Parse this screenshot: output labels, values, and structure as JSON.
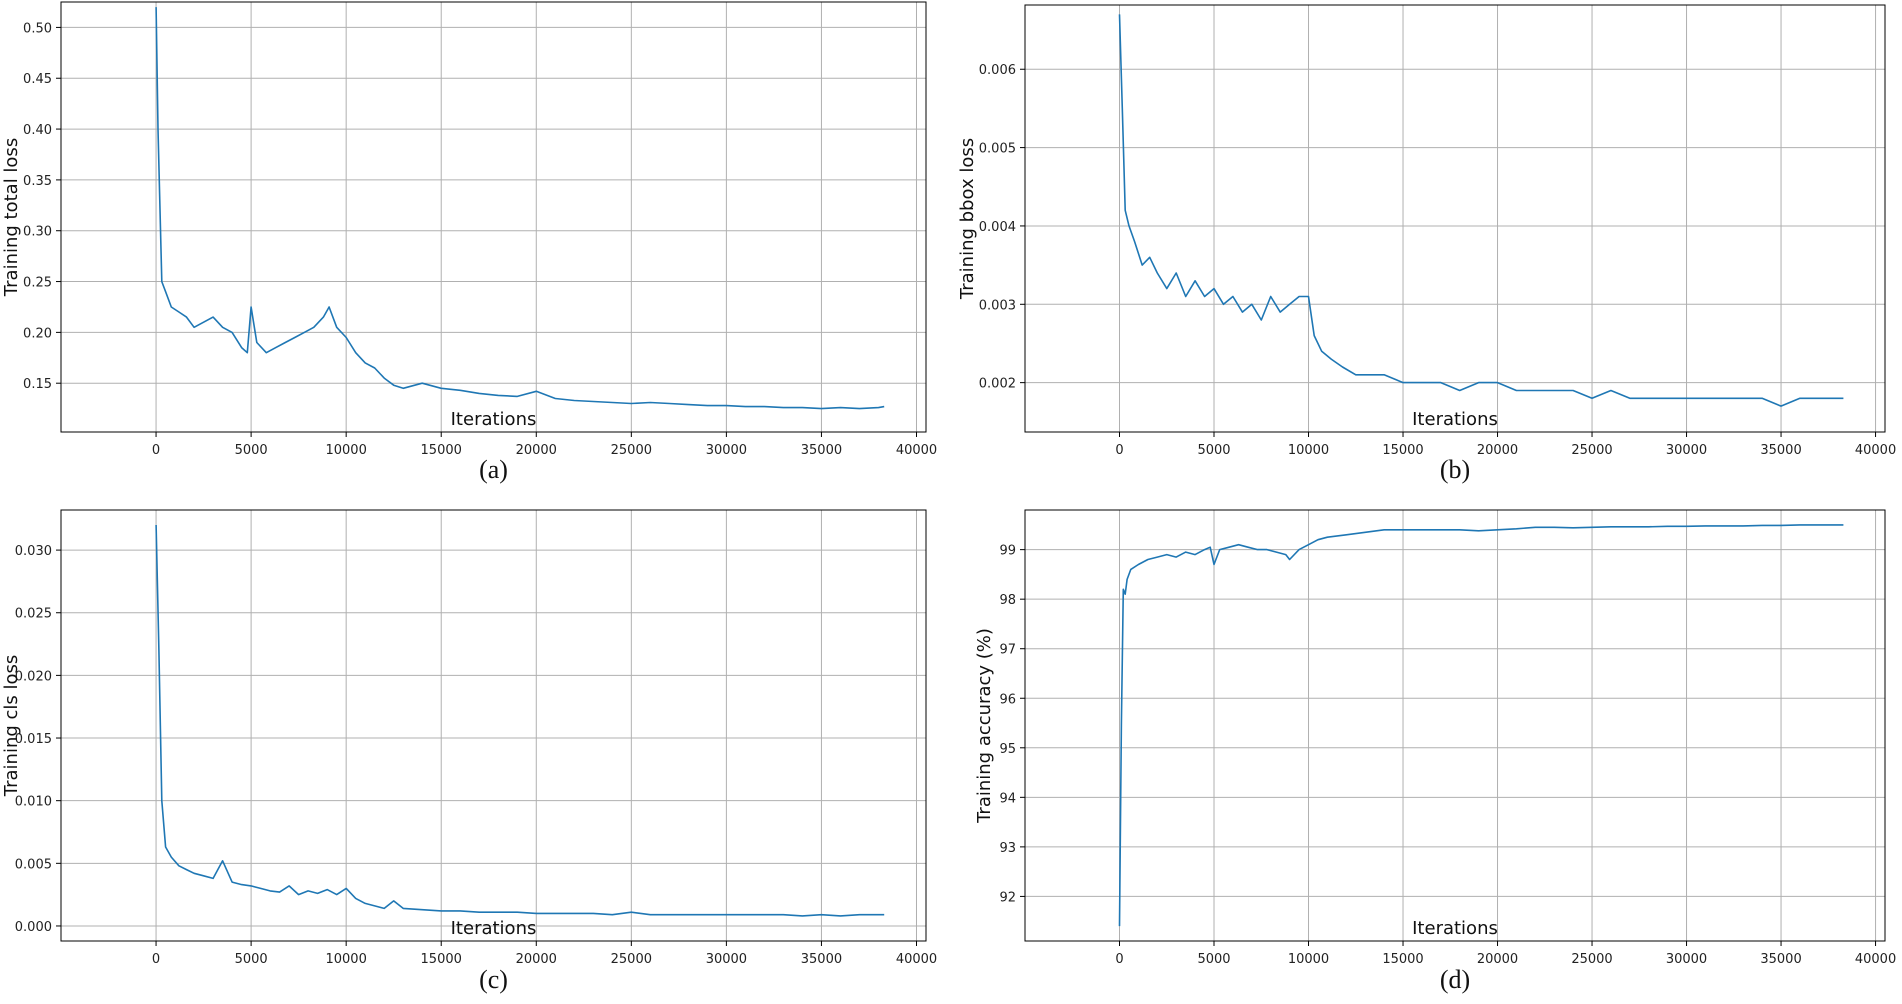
{
  "chart_data": [
    {
      "id": "a",
      "type": "line",
      "caption": "(a)",
      "xlabel": "Iterations",
      "ylabel": "Training total loss",
      "xlim": [
        -5000,
        40500
      ],
      "ylim": [
        0.102,
        0.525
      ],
      "xticks": [
        0,
        5000,
        10000,
        15000,
        20000,
        25000,
        30000,
        35000,
        40000
      ],
      "xtick_labels": [
        "0",
        "5000",
        "10000",
        "15000",
        "20000",
        "25000",
        "30000",
        "35000",
        "40000"
      ],
      "yticks": [
        0.15,
        0.2,
        0.25,
        0.3,
        0.35,
        0.4,
        0.45,
        0.5
      ],
      "ytick_labels": [
        "0.15",
        "0.20",
        "0.25",
        "0.30",
        "0.35",
        "0.40",
        "0.45",
        "0.50"
      ],
      "grid": true,
      "color": "#1f77b4",
      "series": [
        {
          "x": [
            0,
            100,
            300,
            500,
            800,
            1200,
            1600,
            2000,
            2500,
            3000,
            3500,
            4000,
            4500,
            4800,
            5000,
            5300,
            5800,
            6300,
            6800,
            7300,
            7800,
            8300,
            8800,
            9100,
            9500,
            10000,
            10500,
            11000,
            11500,
            12000,
            12500,
            13000,
            14000,
            15000,
            16000,
            17000,
            18000,
            19000,
            20000,
            21000,
            22000,
            23000,
            24000,
            25000,
            26000,
            27000,
            28000,
            29000,
            30000,
            31000,
            32000,
            33000,
            34000,
            35000,
            36000,
            37000,
            38000,
            38300
          ],
          "y": [
            0.52,
            0.4,
            0.25,
            0.24,
            0.225,
            0.22,
            0.215,
            0.205,
            0.21,
            0.215,
            0.205,
            0.2,
            0.185,
            0.18,
            0.225,
            0.19,
            0.18,
            0.185,
            0.19,
            0.195,
            0.2,
            0.205,
            0.215,
            0.225,
            0.205,
            0.195,
            0.18,
            0.17,
            0.165,
            0.155,
            0.148,
            0.145,
            0.15,
            0.145,
            0.143,
            0.14,
            0.138,
            0.137,
            0.142,
            0.135,
            0.133,
            0.132,
            0.131,
            0.13,
            0.131,
            0.13,
            0.129,
            0.128,
            0.128,
            0.127,
            0.127,
            0.126,
            0.126,
            0.125,
            0.126,
            0.125,
            0.126,
            0.127
          ]
        }
      ]
    },
    {
      "id": "b",
      "type": "line",
      "caption": "(b)",
      "xlabel": "Iterations",
      "ylabel": "Training bbox loss",
      "xlim": [
        -5000,
        40500
      ],
      "ylim": [
        0.00137,
        0.00682
      ],
      "xticks": [
        0,
        5000,
        10000,
        15000,
        20000,
        25000,
        30000,
        35000,
        40000
      ],
      "xtick_labels": [
        "0",
        "5000",
        "10000",
        "15000",
        "20000",
        "25000",
        "30000",
        "35000",
        "40000"
      ],
      "yticks": [
        0.002,
        0.003,
        0.004,
        0.005,
        0.006
      ],
      "ytick_labels": [
        "0.002",
        "0.003",
        "0.004",
        "0.005",
        "0.006"
      ],
      "grid": true,
      "color": "#1f77b4",
      "series": [
        {
          "x": [
            0,
            150,
            300,
            500,
            800,
            1200,
            1600,
            2000,
            2500,
            3000,
            3500,
            4000,
            4500,
            5000,
            5500,
            6000,
            6500,
            7000,
            7500,
            8000,
            8500,
            9000,
            9500,
            10000,
            10300,
            10700,
            11200,
            11800,
            12500,
            13000,
            14000,
            15000,
            16000,
            17000,
            18000,
            19000,
            20000,
            21000,
            22000,
            23000,
            24000,
            25000,
            26000,
            27000,
            28000,
            29000,
            30000,
            31000,
            32000,
            33000,
            34000,
            35000,
            36000,
            37000,
            38000,
            38300
          ],
          "y": [
            0.0067,
            0.0055,
            0.0042,
            0.004,
            0.0038,
            0.0035,
            0.0036,
            0.0034,
            0.0032,
            0.0034,
            0.0031,
            0.0033,
            0.0031,
            0.0032,
            0.003,
            0.0031,
            0.0029,
            0.003,
            0.0028,
            0.0031,
            0.0029,
            0.003,
            0.0031,
            0.0031,
            0.0026,
            0.0024,
            0.0023,
            0.0022,
            0.0021,
            0.0021,
            0.0021,
            0.002,
            0.002,
            0.002,
            0.0019,
            0.002,
            0.002,
            0.0019,
            0.0019,
            0.0019,
            0.0019,
            0.0018,
            0.0019,
            0.0018,
            0.0018,
            0.0018,
            0.0018,
            0.0018,
            0.0018,
            0.0018,
            0.0018,
            0.0017,
            0.0018,
            0.0018,
            0.0018,
            0.0018
          ]
        }
      ]
    },
    {
      "id": "c",
      "type": "line",
      "caption": "(c)",
      "xlabel": "Iterations",
      "ylabel": "Training cls loss",
      "xlim": [
        -5000,
        40500
      ],
      "ylim": [
        -0.0012,
        0.0332
      ],
      "xticks": [
        0,
        5000,
        10000,
        15000,
        20000,
        25000,
        30000,
        35000,
        40000
      ],
      "xtick_labels": [
        "0",
        "5000",
        "10000",
        "15000",
        "20000",
        "25000",
        "30000",
        "35000",
        "40000"
      ],
      "yticks": [
        0.0,
        0.005,
        0.01,
        0.015,
        0.02,
        0.025,
        0.03
      ],
      "ytick_labels": [
        "0.000",
        "0.005",
        "0.010",
        "0.015",
        "0.020",
        "0.025",
        "0.030"
      ],
      "grid": true,
      "color": "#1f77b4",
      "series": [
        {
          "x": [
            0,
            150,
            300,
            500,
            800,
            1200,
            1600,
            2000,
            2500,
            3000,
            3500,
            4000,
            4500,
            5000,
            5500,
            6000,
            6500,
            7000,
            7500,
            8000,
            8500,
            9000,
            9500,
            10000,
            10500,
            11000,
            11500,
            12000,
            12500,
            13000,
            14000,
            15000,
            16000,
            17000,
            18000,
            19000,
            20000,
            21000,
            22000,
            23000,
            24000,
            25000,
            26000,
            27000,
            28000,
            29000,
            30000,
            31000,
            32000,
            33000,
            34000,
            35000,
            36000,
            37000,
            38000,
            38300
          ],
          "y": [
            0.032,
            0.022,
            0.01,
            0.0063,
            0.0055,
            0.0048,
            0.0045,
            0.0042,
            0.004,
            0.0038,
            0.0052,
            0.0035,
            0.0033,
            0.0032,
            0.003,
            0.0028,
            0.0027,
            0.0032,
            0.0025,
            0.0028,
            0.0026,
            0.0029,
            0.0025,
            0.003,
            0.0022,
            0.0018,
            0.0016,
            0.0014,
            0.002,
            0.0014,
            0.0013,
            0.0012,
            0.0012,
            0.0011,
            0.0011,
            0.0011,
            0.001,
            0.001,
            0.001,
            0.001,
            0.0009,
            0.0011,
            0.0009,
            0.0009,
            0.0009,
            0.0009,
            0.0009,
            0.0009,
            0.0009,
            0.0009,
            0.0008,
            0.0009,
            0.0008,
            0.0009,
            0.0009,
            0.0009
          ]
        }
      ]
    },
    {
      "id": "d",
      "type": "line",
      "caption": "(d)",
      "xlabel": "Iterations",
      "ylabel": "Training accuracy (%)",
      "xlim": [
        -5000,
        40500
      ],
      "ylim": [
        91.1,
        99.8
      ],
      "xticks": [
        0,
        5000,
        10000,
        15000,
        20000,
        25000,
        30000,
        35000,
        40000
      ],
      "xtick_labels": [
        "0",
        "5000",
        "10000",
        "15000",
        "20000",
        "25000",
        "30000",
        "35000",
        "40000"
      ],
      "yticks": [
        92,
        93,
        94,
        95,
        96,
        97,
        98,
        99
      ],
      "ytick_labels": [
        "92",
        "93",
        "94",
        "95",
        "96",
        "97",
        "98",
        "99"
      ],
      "grid": true,
      "color": "#1f77b4",
      "series": [
        {
          "x": [
            0,
            100,
            200,
            300,
            400,
            600,
            1000,
            1500,
            2000,
            2500,
            3000,
            3500,
            4000,
            4500,
            4800,
            5000,
            5300,
            5800,
            6300,
            6800,
            7300,
            7800,
            8300,
            8800,
            9000,
            9500,
            10000,
            10500,
            11000,
            12000,
            13000,
            14000,
            15000,
            16000,
            17000,
            18000,
            19000,
            20000,
            21000,
            22000,
            23000,
            24000,
            25000,
            26000,
            27000,
            28000,
            29000,
            30000,
            31000,
            32000,
            33000,
            34000,
            35000,
            36000,
            37000,
            38000,
            38300
          ],
          "y": [
            91.4,
            95.5,
            98.2,
            98.1,
            98.4,
            98.6,
            98.7,
            98.8,
            98.85,
            98.9,
            98.85,
            98.95,
            98.9,
            99.0,
            99.05,
            98.7,
            99.0,
            99.05,
            99.1,
            99.05,
            99.0,
            99.0,
            98.95,
            98.9,
            98.8,
            99.0,
            99.1,
            99.2,
            99.25,
            99.3,
            99.35,
            99.4,
            99.4,
            99.4,
            99.4,
            99.4,
            99.38,
            99.4,
            99.42,
            99.45,
            99.45,
            99.44,
            99.45,
            99.46,
            99.46,
            99.46,
            99.47,
            99.47,
            99.48,
            99.48,
            99.48,
            99.49,
            99.49,
            99.5,
            99.5,
            99.5,
            99.5
          ]
        }
      ]
    }
  ]
}
